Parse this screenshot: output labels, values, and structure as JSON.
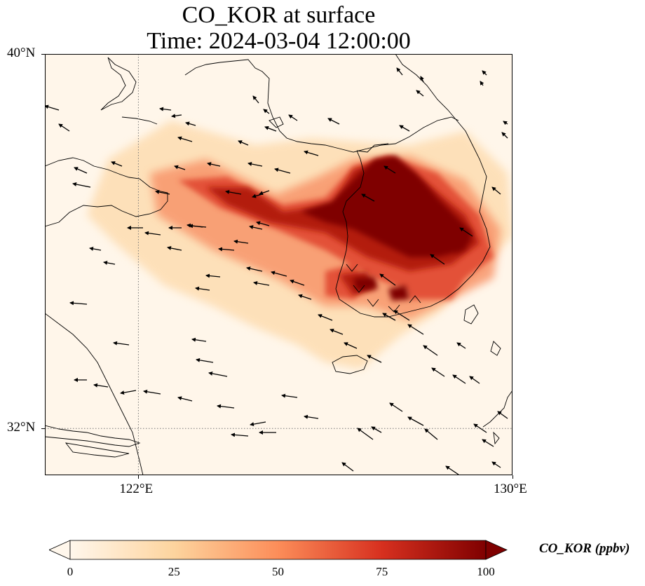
{
  "title": {
    "line1": "CO_KOR at surface",
    "line2": "Time: 2024-03-04 12:00:00"
  },
  "map": {
    "variable": "CO_KOR",
    "level": "surface",
    "time": "2024-03-04 12:00:00",
    "extent": {
      "lon_min": 120,
      "lon_max": 130,
      "lat_min": 31,
      "lat_max": 40
    },
    "lon_ticks": [
      {
        "value": 122,
        "label": "122°E"
      },
      {
        "value": 130,
        "label": "130°E"
      }
    ],
    "lat_ticks": [
      {
        "value": 40,
        "label": "40°N"
      },
      {
        "value": 32,
        "label": "32°N"
      }
    ],
    "gridlines": "dotted at 122°E and 32°N",
    "background_color": "#fff6ea",
    "plume_colors": [
      "#fdd9a9",
      "#f8956a",
      "#e35137",
      "#b31a0d",
      "#7f0000"
    ]
  },
  "colorbar": {
    "label": "CO_KOR (ppbv)",
    "ticks": [
      "0",
      "25",
      "50",
      "75",
      "100"
    ],
    "min": 0,
    "max": 100,
    "extend": "both",
    "colormap": "OrRd",
    "colors": [
      "#fff7ec",
      "#fdd49e",
      "#fc8d59",
      "#d7301f",
      "#7f0000"
    ]
  }
}
